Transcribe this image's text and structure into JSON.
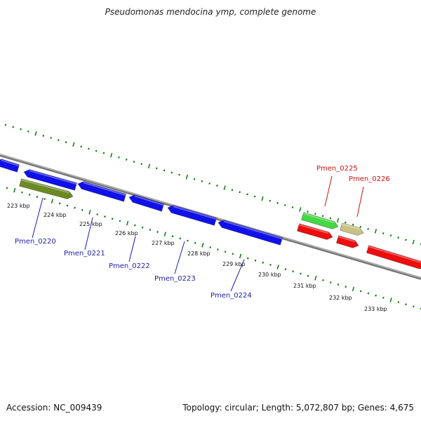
{
  "title": "Pseudomonas mendocina ymp, complete genome",
  "accession": "Accession: NC_009439",
  "topology": "Topology: circular; Length: 5,072,807 bp; Genes: 4,675",
  "colors": {
    "tick": "#0a7a0a",
    "backbone": "#8c8c8c",
    "gene_blue": "#1010e8",
    "gene_red": "#ee0d0d",
    "gene_green": "#44d844",
    "gene_olive": "#6b8a23",
    "gene_tan": "#c9c286",
    "label_blue": "#1c1ca8",
    "label_red": "#d01010"
  },
  "kbp_labels": [
    "223 kbp",
    "224 kbp",
    "225 kbp",
    "226 kbp",
    "227 kbp",
    "228 kbp",
    "229 kbp",
    "230 kbp",
    "231 kbp",
    "232 kbp",
    "233 kbp"
  ],
  "gene_labels": [
    {
      "text": "Pmen_0220",
      "color": "blue"
    },
    {
      "text": "Pmen_0221",
      "color": "blue"
    },
    {
      "text": "Pmen_0222",
      "color": "blue"
    },
    {
      "text": "Pmen_0223",
      "color": "blue"
    },
    {
      "text": "Pmen_0224",
      "color": "blue"
    },
    {
      "text": "Pmen_0225",
      "color": "red"
    },
    {
      "text": "Pmen_0226",
      "color": "red"
    }
  ],
  "genes": [
    {
      "id": "g-left-partial",
      "strand": "-",
      "color": "blue"
    },
    {
      "id": "Pmen_0220",
      "strand": "-",
      "color": "blue"
    },
    {
      "id": "olive",
      "strand": "+",
      "color": "olive"
    },
    {
      "id": "Pmen_0221",
      "strand": "-",
      "color": "blue"
    },
    {
      "id": "Pmen_0222",
      "strand": "-",
      "color": "blue"
    },
    {
      "id": "Pmen_0223",
      "strand": "-",
      "color": "blue"
    },
    {
      "id": "Pmen_0224",
      "strand": "-",
      "color": "blue"
    },
    {
      "id": "Pmen_0225",
      "strand": "+",
      "color": "green"
    },
    {
      "id": "Pmen_0226",
      "strand": "+",
      "color": "tan"
    },
    {
      "id": "red-1",
      "strand": "+",
      "color": "red"
    },
    {
      "id": "red-2",
      "strand": "+",
      "color": "red"
    },
    {
      "id": "red-3",
      "strand": "+",
      "color": "red"
    }
  ]
}
